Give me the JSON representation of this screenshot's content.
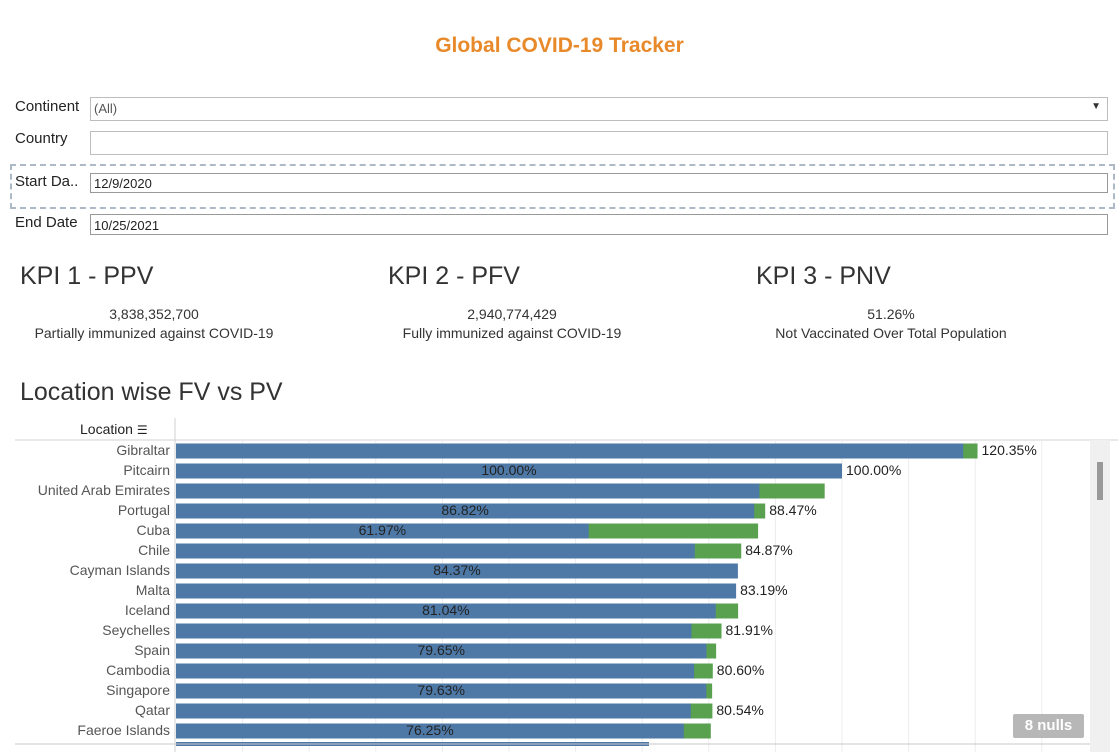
{
  "title": "Global COVID-19 Tracker",
  "filters": {
    "continent_label": "Continent",
    "continent_value": "(All)",
    "country_label": "Country",
    "country_value": "",
    "start_label": "Start Da..",
    "start_value": "12/9/2020",
    "end_label": "End Date",
    "end_value": "10/25/2021"
  },
  "kpis": [
    {
      "title": "KPI 1 - PPV",
      "value": "3,838,352,700",
      "caption": "Partially immunized against COVID-19"
    },
    {
      "title": "KPI 2 - PFV",
      "value": "2,940,774,429",
      "caption": "Fully immunized against COVID-19"
    },
    {
      "title": "KPI 3 - PNV",
      "value": "51.26%",
      "caption": "Not Vaccinated Over Total Population"
    }
  ],
  "section_title": "Location wise FV vs PV",
  "axis_header": "Location",
  "nulls_badge": "8 nulls",
  "colors": {
    "fv": "#4e79a7",
    "pv": "#59a14f",
    "title": "#e8892a"
  },
  "chart_data": {
    "type": "bar",
    "orientation": "horizontal",
    "grid": true,
    "categories": [
      "Gibraltar",
      "Pitcairn",
      "United Arab Emirates",
      "Portugal",
      "Cuba",
      "Chile",
      "Cayman Islands",
      "Malta",
      "Iceland",
      "Seychelles",
      "Spain",
      "Cambodia",
      "Singapore",
      "Qatar",
      "Faeroe Islands"
    ],
    "series": [
      {
        "name": "FV",
        "values": [
          118.2,
          100.0,
          87.6,
          86.82,
          61.97,
          77.9,
          84.37,
          84.1,
          81.04,
          77.4,
          79.65,
          77.8,
          79.63,
          77.3,
          76.25
        ],
        "labels": [
          "",
          "100.00%",
          "",
          "86.82%",
          "61.97%",
          "",
          "84.37%",
          "",
          "81.04%",
          "",
          "79.65%",
          "",
          "79.63%",
          "",
          "76.25%"
        ]
      },
      {
        "name": "PV",
        "values": [
          120.35,
          100.0,
          97.4,
          88.47,
          87.4,
          84.87,
          83.8,
          83.19,
          84.4,
          81.91,
          81.1,
          80.6,
          80.5,
          80.54,
          80.3
        ],
        "labels": [
          "120.35%",
          "100.00%",
          "",
          "88.47%",
          "",
          "84.87%",
          "",
          "83.19%",
          "",
          "81.91%",
          "",
          "80.60%",
          "",
          "80.54%",
          ""
        ]
      }
    ],
    "xlim": [
      0,
      150
    ]
  }
}
